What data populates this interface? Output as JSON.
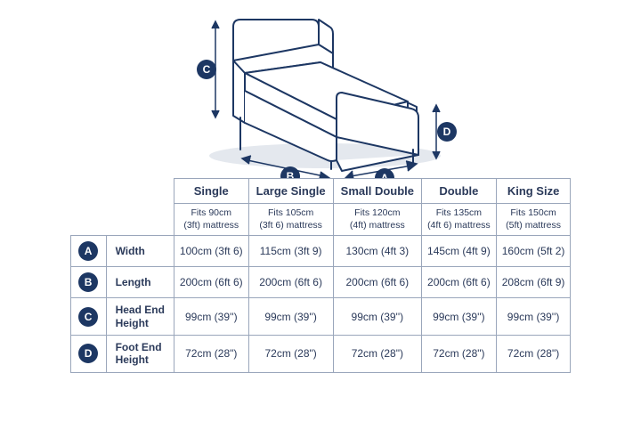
{
  "diagram": {
    "stroke_color": "#1d3763",
    "fill_color": "#ffffff",
    "shadow_color": "#d9dee7",
    "badge_bg": "#1d3763",
    "badge_fg": "#ffffff",
    "labels": {
      "a": "A",
      "b": "B",
      "c": "C",
      "d": "D"
    }
  },
  "table": {
    "border_color": "#9aa6bb",
    "text_color": "#2b3a5a",
    "sizes": [
      {
        "name": "Single",
        "fits_line1": "Fits 90cm",
        "fits_line2": "(3ft) mattress"
      },
      {
        "name": "Large Single",
        "fits_line1": "Fits 105cm",
        "fits_line2": "(3ft 6) mattress"
      },
      {
        "name": "Small Double",
        "fits_line1": "Fits 120cm",
        "fits_line2": "(4ft) mattress"
      },
      {
        "name": "Double",
        "fits_line1": "Fits 135cm",
        "fits_line2": "(4ft 6) mattress"
      },
      {
        "name": "King Size",
        "fits_line1": "Fits 150cm",
        "fits_line2": "(5ft) mattress"
      }
    ],
    "rows": [
      {
        "letter": "A",
        "name": "Width",
        "values": [
          "100cm (3ft 6)",
          "115cm (3ft 9)",
          "130cm (4ft 3)",
          "145cm (4ft 9)",
          "160cm (5ft 2)"
        ]
      },
      {
        "letter": "B",
        "name": "Length",
        "values": [
          "200cm (6ft 6)",
          "200cm (6ft 6)",
          "200cm (6ft 6)",
          "200cm (6ft 6)",
          "208cm (6ft 9)"
        ]
      },
      {
        "letter": "C",
        "name": "Head End\nHeight",
        "values": [
          "99cm (39'')",
          "99cm (39'')",
          "99cm (39'')",
          "99cm (39'')",
          "99cm (39'')"
        ]
      },
      {
        "letter": "D",
        "name": "Foot End\nHeight",
        "values": [
          "72cm (28\")",
          "72cm (28\")",
          "72cm (28\")",
          "72cm (28\")",
          "72cm (28\")"
        ]
      }
    ]
  }
}
